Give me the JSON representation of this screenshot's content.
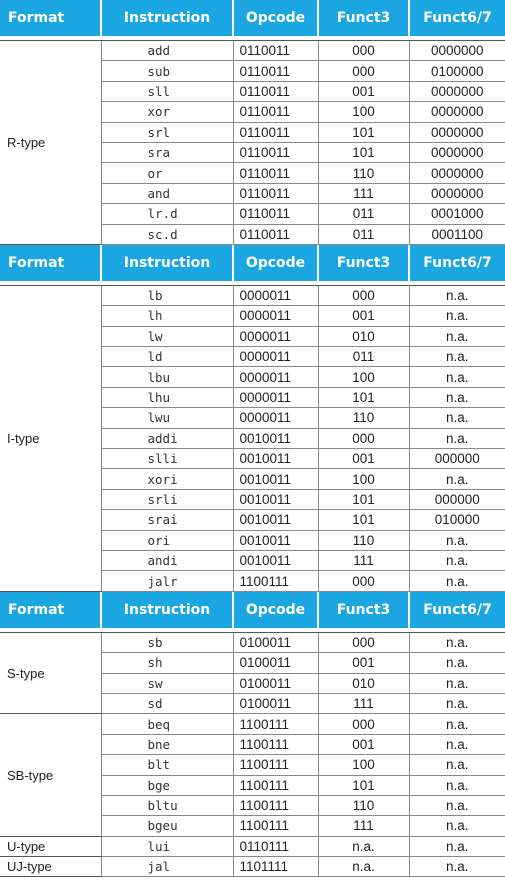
{
  "headers": [
    "Format",
    "Instruction",
    "Opcode",
    "Funct3",
    "Funct6/7"
  ],
  "sections": [
    {
      "groups": [
        {
          "format": "R-type",
          "rows": [
            [
              "add",
              "0110011",
              "000",
              "0000000"
            ],
            [
              "sub",
              "0110011",
              "000",
              "0100000"
            ],
            [
              "sll",
              "0110011",
              "001",
              "0000000"
            ],
            [
              "xor",
              "0110011",
              "100",
              "0000000"
            ],
            [
              "srl",
              "0110011",
              "101",
              "0000000"
            ],
            [
              "sra",
              "0110011",
              "101",
              "0000000"
            ],
            [
              "or",
              "0110011",
              "110",
              "0000000"
            ],
            [
              "and",
              "0110011",
              "111",
              "0000000"
            ],
            [
              "lr.d",
              "0110011",
              "011",
              "0001000"
            ],
            [
              "sc.d",
              "0110011",
              "011",
              "0001100"
            ]
          ]
        }
      ]
    },
    {
      "groups": [
        {
          "format": "I-type",
          "rows": [
            [
              "lb",
              "0000011",
              "000",
              "n.a."
            ],
            [
              "lh",
              "0000011",
              "001",
              "n.a."
            ],
            [
              "lw",
              "0000011",
              "010",
              "n.a."
            ],
            [
              "ld",
              "0000011",
              "011",
              "n.a."
            ],
            [
              "lbu",
              "0000011",
              "100",
              "n.a."
            ],
            [
              "lhu",
              "0000011",
              "101",
              "n.a."
            ],
            [
              "lwu",
              "0000011",
              "110",
              "n.a."
            ],
            [
              "addi",
              "0010011",
              "000",
              "n.a."
            ],
            [
              "slli",
              "0010011",
              "001",
              "000000"
            ],
            [
              "xori",
              "0010011",
              "100",
              "n.a."
            ],
            [
              "srli",
              "0010011",
              "101",
              "000000"
            ],
            [
              "srai",
              "0010011",
              "101",
              "010000"
            ],
            [
              "ori",
              "0010011",
              "110",
              "n.a."
            ],
            [
              "andi",
              "0010011",
              "111",
              "n.a."
            ],
            [
              "jalr",
              "1100111",
              "000",
              "n.a."
            ]
          ]
        }
      ]
    },
    {
      "groups": [
        {
          "format": "S-type",
          "rows": [
            [
              "sb",
              "0100011",
              "000",
              "n.a."
            ],
            [
              "sh",
              "0100011",
              "001",
              "n.a."
            ],
            [
              "sw",
              "0100011",
              "010",
              "n.a."
            ],
            [
              "sd",
              "0100011",
              "111",
              "n.a."
            ]
          ]
        },
        {
          "format": "SB-type",
          "rows": [
            [
              "beq",
              "1100111",
              "000",
              "n.a."
            ],
            [
              "bne",
              "1100111",
              "001",
              "n.a."
            ],
            [
              "blt",
              "1100111",
              "100",
              "n.a."
            ],
            [
              "bge",
              "1100111",
              "101",
              "n.a."
            ],
            [
              "bltu",
              "1100111",
              "110",
              "n.a."
            ],
            [
              "bgeu",
              "1100111",
              "111",
              "n.a."
            ]
          ]
        },
        {
          "format": "U-type",
          "rows": [
            [
              "lui",
              "0110111",
              "n.a.",
              "n.a."
            ]
          ]
        },
        {
          "format": "UJ-type",
          "rows": [
            [
              "jal",
              "1101111",
              "n.a.",
              "n.a."
            ]
          ]
        }
      ]
    }
  ],
  "colors": {
    "header_bg": "#1aa6e0",
    "header_text": "#ffffff",
    "border": "#888888"
  }
}
